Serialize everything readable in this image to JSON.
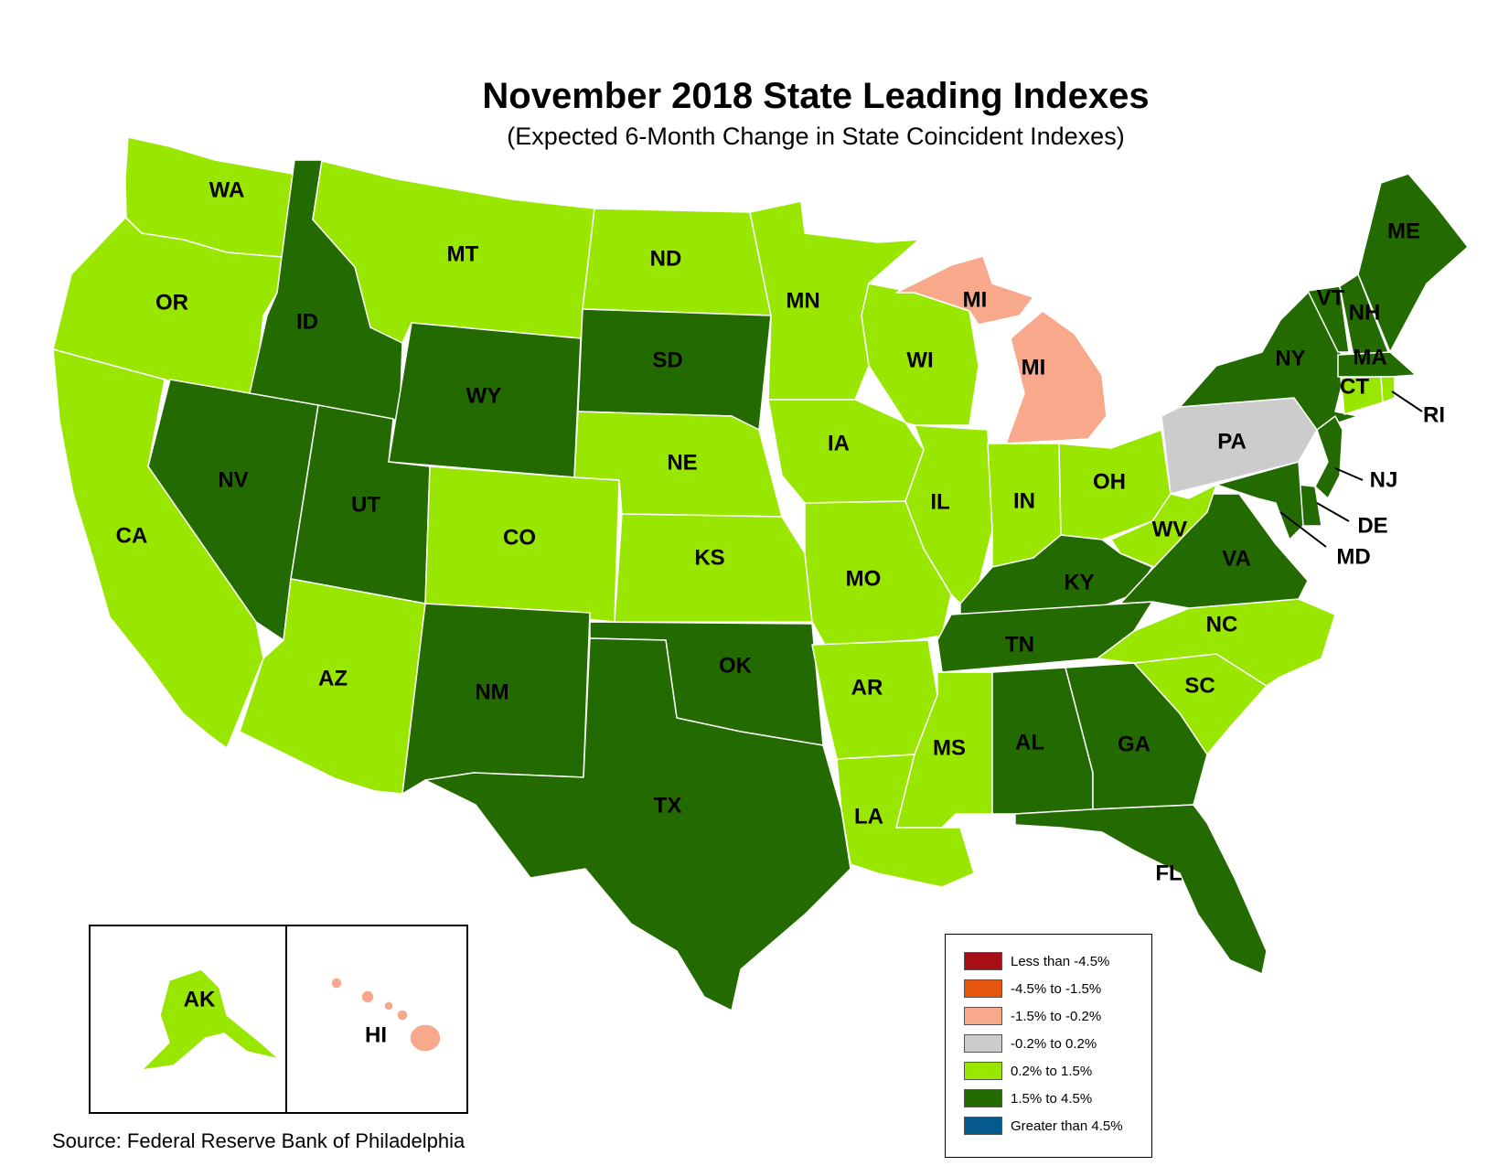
{
  "title": "November 2018 State Leading Indexes",
  "subtitle": "(Expected 6-Month Change in State Coincident Indexes)",
  "source": "Source: Federal Reserve Bank of Philadelphia",
  "legend": [
    {
      "label": "Less than -4.5%",
      "color": "#a50f15"
    },
    {
      "label": "-4.5% to -1.5%",
      "color": "#e6550d"
    },
    {
      "label": "-1.5% to -0.2%",
      "color": "#f9a98b"
    },
    {
      "label": "-0.2% to 0.2%",
      "color": "#cccccc"
    },
    {
      "label": "0.2% to 1.5%",
      "color": "#99e600"
    },
    {
      "label": "1.5% to 4.5%",
      "color": "#236b00"
    },
    {
      "label": "Greater than 4.5%",
      "color": "#045a8d"
    }
  ],
  "states": {
    "WA": "0.2% to 1.5%",
    "OR": "0.2% to 1.5%",
    "CA": "0.2% to 1.5%",
    "ID": "1.5% to 4.5%",
    "NV": "1.5% to 4.5%",
    "UT": "1.5% to 4.5%",
    "AZ": "0.2% to 1.5%",
    "MT": "0.2% to 1.5%",
    "WY": "1.5% to 4.5%",
    "CO": "0.2% to 1.5%",
    "NM": "1.5% to 4.5%",
    "ND": "0.2% to 1.5%",
    "SD": "1.5% to 4.5%",
    "NE": "0.2% to 1.5%",
    "KS": "0.2% to 1.5%",
    "OK": "1.5% to 4.5%",
    "TX": "1.5% to 4.5%",
    "MN": "0.2% to 1.5%",
    "IA": "0.2% to 1.5%",
    "MO": "0.2% to 1.5%",
    "AR": "0.2% to 1.5%",
    "LA": "0.2% to 1.5%",
    "WI": "0.2% to 1.5%",
    "IL": "0.2% to 1.5%",
    "MI": "-1.5% to -0.2%",
    "IN": "0.2% to 1.5%",
    "OH": "0.2% to 1.5%",
    "KY": "1.5% to 4.5%",
    "TN": "1.5% to 4.5%",
    "MS": "0.2% to 1.5%",
    "AL": "1.5% to 4.5%",
    "GA": "1.5% to 4.5%",
    "FL": "1.5% to 4.5%",
    "SC": "0.2% to 1.5%",
    "NC": "0.2% to 1.5%",
    "VA": "1.5% to 4.5%",
    "WV": "0.2% to 1.5%",
    "PA": "-0.2% to 0.2%",
    "NY": "1.5% to 4.5%",
    "VT": "1.5% to 4.5%",
    "NH": "1.5% to 4.5%",
    "ME": "1.5% to 4.5%",
    "MA": "1.5% to 4.5%",
    "CT": "0.2% to 1.5%",
    "RI": "0.2% to 1.5%",
    "NJ": "1.5% to 4.5%",
    "DE": "1.5% to 4.5%",
    "MD": "1.5% to 4.5%",
    "AK": "0.2% to 1.5%",
    "HI": "-1.5% to -0.2%"
  }
}
